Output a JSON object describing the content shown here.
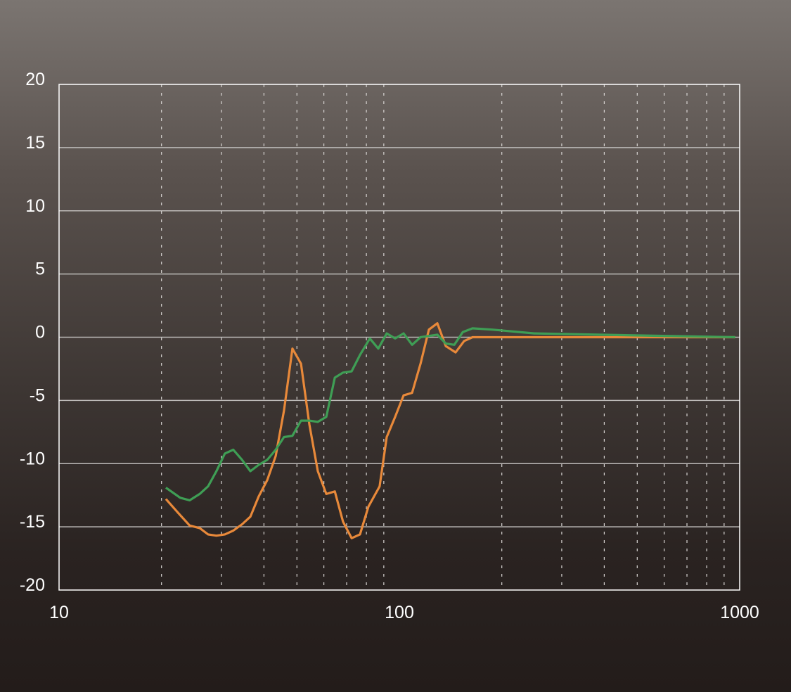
{
  "chart_data": {
    "type": "line",
    "title": "",
    "xlabel": "",
    "ylabel": "",
    "x_scale": "log",
    "xlim": [
      10,
      1000
    ],
    "ylim": [
      -20,
      20
    ],
    "x_ticks": [
      "10",
      "100",
      "1000"
    ],
    "y_ticks": [
      "20",
      "15",
      "10",
      "5",
      "0",
      "-5",
      "-10",
      "-15",
      "-20"
    ],
    "grid": {
      "horizontal": "solid",
      "vertical_minor": "dotted"
    },
    "colors": {
      "orange": "#e8893a",
      "green": "#3f9e55",
      "grid": "#bdbab8",
      "axis": "#ffffff"
    },
    "series": [
      {
        "color": "#e8893a",
        "points": [
          [
            20.6,
            -12.8
          ],
          [
            22.4,
            -13.9
          ],
          [
            24.2,
            -14.9
          ],
          [
            25.9,
            -15.1
          ],
          [
            27.4,
            -15.6
          ],
          [
            29.0,
            -15.7
          ],
          [
            30.7,
            -15.6
          ],
          [
            32.5,
            -15.3
          ],
          [
            34.5,
            -14.8
          ],
          [
            36.5,
            -14.2
          ],
          [
            38.6,
            -12.6
          ],
          [
            40.9,
            -11.3
          ],
          [
            43.3,
            -9.4
          ],
          [
            45.8,
            -5.8
          ],
          [
            48.5,
            -0.9
          ],
          [
            51.4,
            -2.1
          ],
          [
            54.4,
            -6.9
          ],
          [
            57.6,
            -10.6
          ],
          [
            61.0,
            -12.4
          ],
          [
            64.6,
            -12.2
          ],
          [
            68.3,
            -14.6
          ],
          [
            72.4,
            -15.9
          ],
          [
            76.6,
            -15.6
          ],
          [
            81.1,
            -13.4
          ],
          [
            87.5,
            -11.8
          ],
          [
            91.8,
            -7.9
          ],
          [
            97.2,
            -6.3
          ],
          [
            102.9,
            -4.6
          ],
          [
            109.0,
            -4.4
          ],
          [
            115.4,
            -2.1
          ],
          [
            122.1,
            0.6
          ],
          [
            129.3,
            1.1
          ],
          [
            136.9,
            -0.7
          ],
          [
            146.3,
            -1.2
          ],
          [
            155,
            -0.3
          ],
          [
            164,
            0
          ],
          [
            970,
            0
          ]
        ]
      },
      {
        "color": "#3f9e55",
        "points": [
          [
            20.6,
            -11.9
          ],
          [
            22.7,
            -12.7
          ],
          [
            24.2,
            -12.9
          ],
          [
            25.9,
            -12.4
          ],
          [
            27.4,
            -11.8
          ],
          [
            29.0,
            -10.6
          ],
          [
            30.7,
            -9.2
          ],
          [
            32.5,
            -8.9
          ],
          [
            34.5,
            -9.7
          ],
          [
            36.5,
            -10.6
          ],
          [
            38.6,
            -10.1
          ],
          [
            40.9,
            -9.7
          ],
          [
            43.3,
            -8.9
          ],
          [
            45.8,
            -7.9
          ],
          [
            48.5,
            -7.8
          ],
          [
            51.4,
            -6.6
          ],
          [
            54.4,
            -6.6
          ],
          [
            57.6,
            -6.7
          ],
          [
            61.0,
            -6.3
          ],
          [
            64.6,
            -3.2
          ],
          [
            68.3,
            -2.8
          ],
          [
            72.4,
            -2.7
          ],
          [
            76.6,
            -1.4
          ],
          [
            81.9,
            -0.1
          ],
          [
            86.7,
            -0.9
          ],
          [
            91.8,
            0.3
          ],
          [
            97.2,
            -0.1
          ],
          [
            102.9,
            0.3
          ],
          [
            109.0,
            -0.6
          ],
          [
            115.4,
            0
          ],
          [
            122.1,
            0.1
          ],
          [
            129.3,
            0.2
          ],
          [
            136.9,
            -0.5
          ],
          [
            145,
            -0.6
          ],
          [
            153.5,
            0.4
          ],
          [
            164,
            0.7
          ],
          [
            187.4,
            0.6
          ],
          [
            249.4,
            0.3
          ],
          [
            382.5,
            0.2
          ],
          [
            970,
            0
          ]
        ]
      }
    ]
  }
}
